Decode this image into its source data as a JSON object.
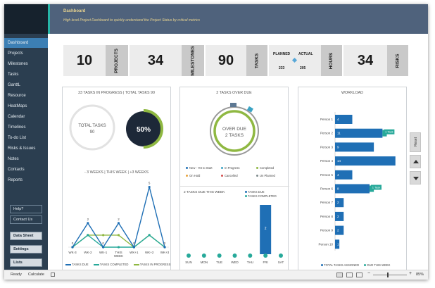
{
  "header": {
    "title": "Dashboard",
    "subtitle": "High level Project Dashboard to quickly understand the Project Status by critical metrics"
  },
  "sidebar": {
    "items": [
      "Dashboard",
      "Projects",
      "Milestones",
      "Tasks",
      "GanttL",
      "Resource",
      "HeatMaps",
      "Calendar",
      "Timelines",
      "To-do List",
      "Risks & Issues",
      "Notes",
      "Contacts",
      "Reports"
    ],
    "active_index": 0,
    "help_label": "Help?",
    "contact_label": "Contact Us",
    "data_sheet_label": "Data Sheet",
    "settings_label": "Settings",
    "lists_label": "Lists"
  },
  "kpis": {
    "projects": {
      "value": "10",
      "label": "PROJECTS"
    },
    "milestones": {
      "value": "34",
      "label": "MILESTONES"
    },
    "tasks": {
      "value": "90",
      "label": "TASKS"
    },
    "hours": {
      "planned_label": "PLANNED",
      "actual_label": "ACTUAL",
      "planned": "233",
      "actual": "205",
      "label": "HOURS"
    },
    "risks": {
      "value": "34",
      "label": "RISKS"
    }
  },
  "panel_progress": {
    "title": "23 TASKS IN PROGRESS | TOTAL TASKS 90",
    "donut_label": "TOTAL TASKS",
    "donut_value": "90",
    "percent_label": "50%",
    "percent": 0.5,
    "weeks_title": "- 3 WEEKS | THIS WEEK | +3 WEEKS"
  },
  "panel_overdue": {
    "title": "2 TASKS OVER DUE",
    "donut_line1": "OVER DUE",
    "donut_line2": "2 TASKS",
    "legend": [
      {
        "label": "New - Yet to Start",
        "color": "#1f6fb5"
      },
      {
        "label": "In Progress",
        "color": "#3aa3c4"
      },
      {
        "label": "Completed",
        "color": "#8fb842"
      },
      {
        "label": "On Hold",
        "color": "#e8a33c"
      },
      {
        "label": "Cancelled",
        "color": "#d24b4b"
      },
      {
        "label": "Un Planned",
        "color": "#7f8c8d"
      }
    ],
    "week_title": "2 TASKS DUE THIS WEEK",
    "week_legend_due": "TASKS DUE",
    "week_legend_completed": "TASKS COMPLETED"
  },
  "panel_workload": {
    "title": "WORKLOAD",
    "legend_assigned": "TOTAL TASKS ASSIGNED",
    "legend_due": "DUE THIS WEEK"
  },
  "side_buttons": {
    "reset_label": "Reset"
  },
  "status": {
    "ready": "Ready",
    "calculate": "Calculate",
    "zoom": "85%"
  },
  "chart_data": [
    {
      "type": "line",
      "categories": [
        "WK-3",
        "WK-2",
        "WK-1",
        "THIS WEEK",
        "WK+1",
        "WK+2",
        "WK+3"
      ],
      "series": [
        {
          "name": "TASKS DUE",
          "values": [
            0,
            2,
            0,
            2,
            0,
            5,
            0
          ],
          "color": "#1f6fb5"
        },
        {
          "name": "TASKS COMPLETED",
          "values": [
            0,
            1,
            0,
            0,
            0,
            1,
            0
          ],
          "color": "#27a99a"
        },
        {
          "name": "TASKS IN PROGRESS",
          "values": [
            0,
            1,
            1,
            1,
            0,
            1,
            0
          ],
          "color": "#8fb842"
        }
      ],
      "data_labels": [
        "0",
        "2",
        "0",
        "2",
        "0",
        "5",
        "0"
      ],
      "ylim": [
        0,
        5.5
      ]
    },
    {
      "type": "bar",
      "categories": [
        "SUN",
        "MON",
        "TUE",
        "WED",
        "THU",
        "FRI",
        "SAT"
      ],
      "series": [
        {
          "name": "TASKS DUE",
          "values": [
            0,
            0,
            0,
            0,
            0,
            2,
            0
          ],
          "color": "#1f6fb5"
        },
        {
          "name": "TASKS COMPLETED",
          "values": [
            0,
            0,
            0,
            0,
            0,
            0,
            0
          ],
          "color": "#27a99a"
        }
      ],
      "data_labels": [
        "",
        "",
        "",
        "",
        "",
        "2",
        ""
      ],
      "ylim": [
        0,
        2
      ]
    },
    {
      "type": "bar",
      "categories": [
        "Person 1",
        "Person 2",
        "Person 3",
        "Person 4",
        "Person 5",
        "Person 6",
        "Person 7",
        "Person 8",
        "Person 9",
        "Person 10"
      ],
      "series": [
        {
          "name": "TOTAL TASKS ASSIGNED",
          "values": [
            4,
            11,
            9,
            14,
            4,
            8,
            2,
            2,
            2,
            1
          ],
          "color": "#1f6fb5"
        },
        {
          "name": "DUE THIS WEEK",
          "values": [
            0,
            1,
            0,
            0,
            0,
            1,
            0,
            0,
            0,
            0
          ],
          "color": "#27a99a"
        }
      ],
      "due_labels": [
        "",
        "1 Task",
        "",
        "",
        "",
        "1 Task",
        "",
        "",
        "",
        ""
      ],
      "xlim": [
        0,
        16
      ]
    }
  ]
}
